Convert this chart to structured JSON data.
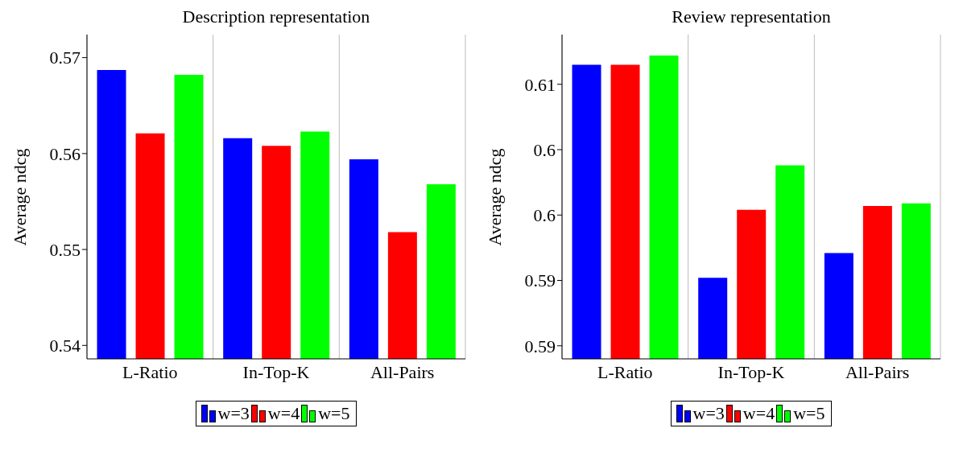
{
  "chart_data": [
    {
      "type": "bar",
      "title": "Description representation",
      "ylabel": "Average ndcg",
      "categories": [
        "L-Ratio",
        "In-Top-K",
        "All-Pairs"
      ],
      "series": [
        {
          "name": "w=3",
          "color": "#0000ff",
          "values": [
            0.5687,
            0.5616,
            0.5594
          ]
        },
        {
          "name": "w=4",
          "color": "#ff0000",
          "values": [
            0.5621,
            0.5608,
            0.5518
          ]
        },
        {
          "name": "w=5",
          "color": "#00ff00",
          "values": [
            0.5682,
            0.5623,
            0.5568
          ]
        }
      ],
      "ylim": [
        0.5386,
        0.5724
      ],
      "yticks": [
        0.54,
        0.55,
        0.56,
        0.57
      ],
      "grid": "x",
      "legend": "bottom"
    },
    {
      "type": "bar",
      "title": "Review representation",
      "ylabel": "Average ndcg",
      "categories": [
        "L-Ratio",
        "In-Top-K",
        "All-Pairs"
      ],
      "series": [
        {
          "name": "w=3",
          "color": "#0000ff",
          "values": [
            0.6115,
            0.5952,
            0.5971
          ]
        },
        {
          "name": "w=4",
          "color": "#ff0000",
          "values": [
            0.6115,
            0.6004,
            0.6007
          ]
        },
        {
          "name": "w=5",
          "color": "#00ff00",
          "values": [
            0.6122,
            0.6038,
            0.6009
          ]
        }
      ],
      "ylim": [
        0.589,
        0.6138
      ],
      "yticks": [
        {
          "value": 0.59,
          "label": "0.59"
        },
        {
          "value": 0.595,
          "label": "0.59"
        },
        {
          "value": 0.6,
          "label": "0.6"
        },
        {
          "value": 0.605,
          "label": "0.6"
        },
        {
          "value": 0.61,
          "label": "0.61"
        }
      ],
      "grid": "x",
      "legend": "bottom"
    }
  ]
}
